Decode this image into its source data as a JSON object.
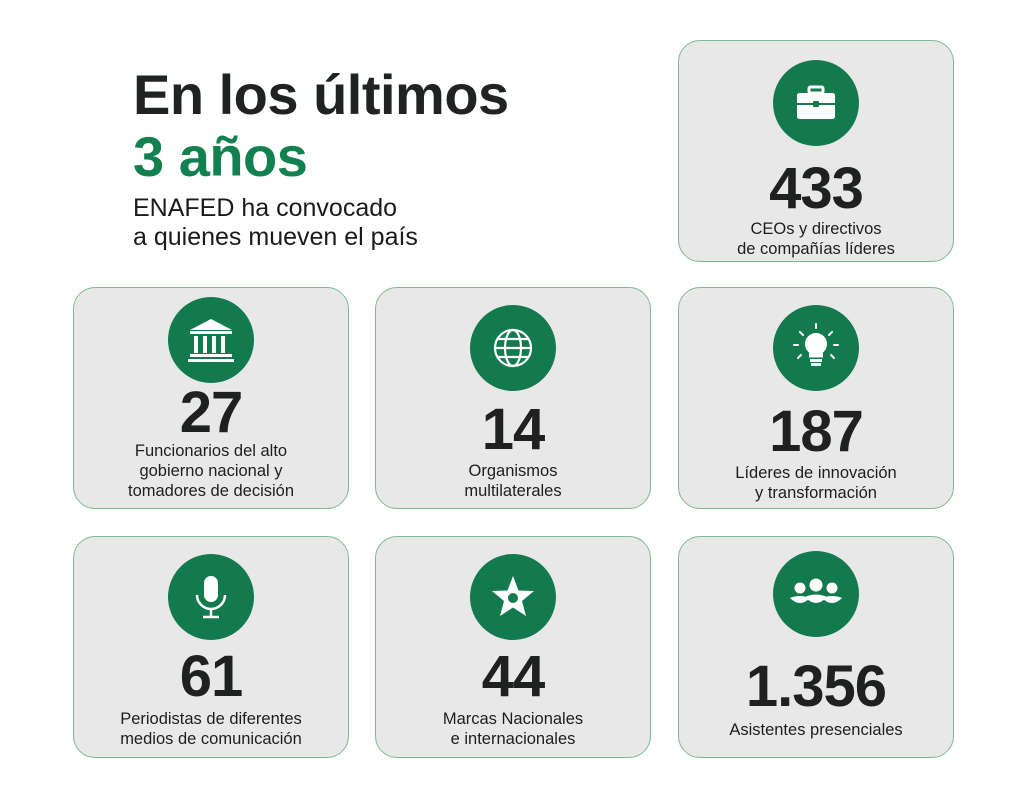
{
  "hero": {
    "line1": "En los últimos",
    "line2": "3 años",
    "sub1": "ENAFED ha convocado",
    "sub2": "a quienes mueven el país"
  },
  "colors": {
    "accent": "#137a4e",
    "card_bg": "#e9e8e8",
    "card_border": "#7fb896"
  },
  "stats": [
    {
      "icon": "briefcase-icon",
      "number": "433",
      "label1": "CEOs y directivos",
      "label2": "de compañías líderes"
    },
    {
      "icon": "government-building-icon",
      "number": "27",
      "label1": "Funcionarios del alto",
      "label2": "gobierno nacional y",
      "label3": "tomadores de decisión"
    },
    {
      "icon": "globe-icon",
      "number": "14",
      "label1": "Organismos",
      "label2": "multilaterales"
    },
    {
      "icon": "lightbulb-icon",
      "number": "187",
      "label1": "Líderes de innovación",
      "label2": "y transformación"
    },
    {
      "icon": "microphone-icon",
      "number": "61",
      "label1": "Periodistas  de diferentes",
      "label2": "medios de comunicación"
    },
    {
      "icon": "star-icon",
      "number": "44",
      "label1": "Marcas Nacionales",
      "label2": "e internacionales"
    },
    {
      "icon": "people-group-icon",
      "number": "1.356",
      "label1": "Asistentes presenciales"
    }
  ]
}
